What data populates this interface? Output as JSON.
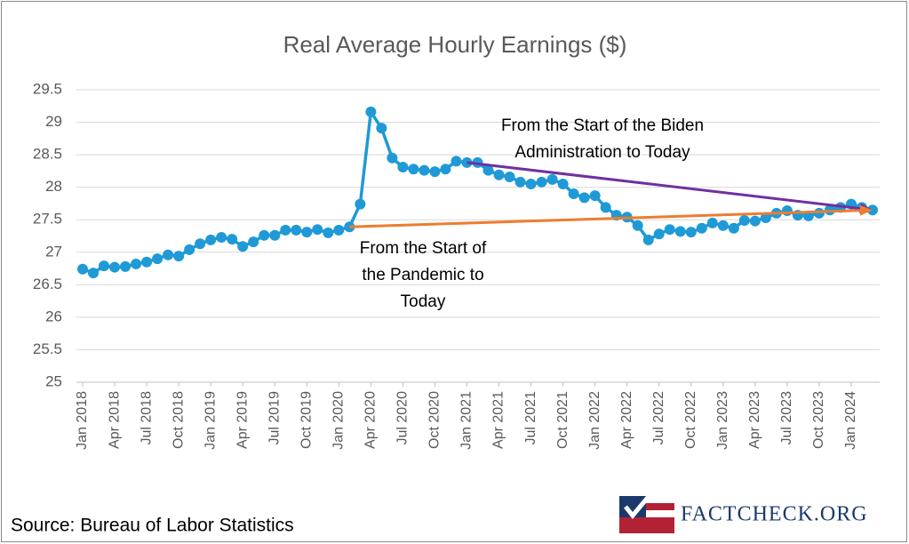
{
  "chart_data": {
    "type": "line",
    "title": "Real Average Hourly Earnings ($)",
    "categories": [
      "Jan 2018",
      null,
      null,
      "Apr 2018",
      null,
      null,
      "Jul 2018",
      null,
      null,
      "Oct 2018",
      null,
      null,
      "Jan 2019",
      null,
      null,
      "Apr 2019",
      null,
      null,
      "Jul 2019",
      null,
      null,
      "Oct 2019",
      null,
      null,
      "Jan 2020",
      null,
      null,
      "Apr 2020",
      null,
      null,
      "Jul 2020",
      null,
      null,
      "Oct 2020",
      null,
      null,
      "Jan 2021",
      null,
      null,
      "Apr 2021",
      null,
      null,
      "Jul 2021",
      null,
      null,
      "Oct 2021",
      null,
      null,
      "Jan 2022",
      null,
      null,
      "Apr 2022",
      null,
      null,
      "Jul 2022",
      null,
      null,
      "Oct 2022",
      null,
      null,
      "Jan 2023",
      null,
      null,
      "Apr 2023",
      null,
      null,
      "Jul 2023",
      null,
      null,
      "Oct 2023",
      null,
      null,
      "Jan 2024",
      null,
      null
    ],
    "series": [
      {
        "color": "#1f9ad6",
        "values": [
          26.74,
          26.68,
          26.79,
          26.77,
          26.78,
          26.82,
          26.85,
          26.9,
          26.96,
          26.94,
          27.04,
          27.13,
          27.19,
          27.23,
          27.2,
          27.09,
          27.16,
          27.26,
          27.26,
          27.34,
          27.34,
          27.31,
          27.35,
          27.3,
          27.34,
          27.39,
          27.74,
          29.16,
          28.91,
          28.45,
          28.31,
          28.28,
          28.26,
          28.24,
          28.28,
          28.4,
          28.38,
          28.38,
          28.26,
          28.19,
          28.16,
          28.08,
          28.05,
          28.08,
          28.12,
          28.05,
          27.9,
          27.84,
          27.87,
          27.69,
          27.57,
          27.54,
          27.41,
          27.19,
          27.28,
          27.35,
          27.32,
          27.31,
          27.37,
          27.45,
          27.41,
          27.37,
          27.49,
          27.48,
          27.53,
          27.6,
          27.64,
          27.57,
          27.56,
          27.6,
          27.65,
          27.69,
          27.74,
          27.69,
          27.65
        ]
      }
    ],
    "ylim": [
      25,
      29.5
    ],
    "yticks": [
      25,
      25.5,
      26,
      26.5,
      27,
      27.5,
      28,
      28.5,
      29,
      29.5
    ],
    "grid": true,
    "annotations": [
      {
        "lines": [
          "From the Start of the Biden",
          "Administration to Today"
        ],
        "color": "#7030a0"
      },
      {
        "lines": [
          "From the Start of",
          "the Pandemic to",
          "Today"
        ],
        "color": "#ed7d31"
      }
    ],
    "source": "Source: Bureau of Labor Statistics",
    "logo": "FACTCHECK.ORG"
  }
}
